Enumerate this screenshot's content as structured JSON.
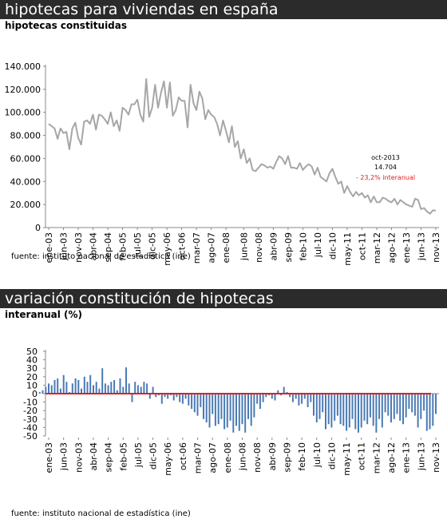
{
  "top": {
    "header": "hipotecas para viviendas en españa",
    "subtitle": "hipotecas constituidas",
    "source": "fuente: instituto nacional de estadística (ine)",
    "annotation": {
      "date": "oct-2013",
      "value": "14.704",
      "change": "- 23,2% interanual"
    }
  },
  "bottom": {
    "header": "variación constitución de hipotecas",
    "subtitle": "interanual (%)",
    "source": "fuente: instituto nacional de estadística (ine)"
  },
  "colors": {
    "line": "#a6a6a6",
    "bar": "#4a7ab5",
    "zero_line": "#e02020",
    "annotation_red": "#e02020",
    "header_bg": "#2b2b2b"
  },
  "chart_data": [
    {
      "type": "line",
      "title": "hipotecas constituidas",
      "x_labels": [
        "ene-03",
        "jun-03",
        "nov-03",
        "abr-04",
        "sep-04",
        "feb-05",
        "jul-05",
        "dic-05",
        "may-06",
        "oct-06",
        "mar-07",
        "ago-07",
        "ene-08",
        "jun-08",
        "nov-08",
        "abr-09",
        "sep-09",
        "feb-10",
        "jul-10",
        "dic-10",
        "may-11",
        "oct-11",
        "mar-12",
        "ago-12",
        "ene-13",
        "jun-13",
        "nov-13"
      ],
      "yticks": [
        "0",
        "20.000",
        "40.000",
        "60.000",
        "80.000",
        "100.000",
        "120.000",
        "140.000"
      ],
      "ylim": [
        0,
        140000
      ],
      "grid": false,
      "series": [
        {
          "values": [
            90000,
            88000,
            86000,
            77000,
            86000,
            82000,
            83000,
            68000,
            86000,
            91000,
            78000,
            72000,
            92000,
            93000,
            90000,
            98000,
            85000,
            98000,
            97000,
            94000,
            90000,
            100000,
            88000,
            93000,
            84000,
            104000,
            102000,
            98000,
            107000,
            107000,
            111000,
            98000,
            92000,
            129000,
            96000,
            104000,
            124000,
            104000,
            117000,
            127000,
            104000,
            126000,
            97000,
            102000,
            113000,
            110000,
            110000,
            87000,
            124000,
            108000,
            102000,
            118000,
            112000,
            94000,
            102000,
            98000,
            96000,
            90000,
            80000,
            93000,
            84000,
            74000,
            88000,
            70000,
            75000,
            60000,
            68000,
            56000,
            60000,
            50000,
            49000,
            52000,
            55000,
            54000,
            52000,
            53000,
            51000,
            57000,
            62000,
            60000,
            55000,
            62000,
            52000,
            52000,
            51000,
            56000,
            50000,
            53000,
            55000,
            53000,
            46000,
            52000,
            44000,
            42000,
            40000,
            47000,
            51000,
            44000,
            38000,
            40000,
            30000,
            36000,
            31000,
            27000,
            31000,
            28000,
            30000,
            26000,
            28000,
            22000,
            27000,
            22000,
            22000,
            26000,
            25000,
            23000,
            22000,
            25000,
            20000,
            24000,
            22000,
            20000,
            19000,
            18000,
            25000,
            24000,
            16000,
            17000,
            14000,
            12000,
            15000,
            14704
          ]
        }
      ]
    },
    {
      "type": "bar",
      "title": "variación constitución de hipotecas",
      "x_labels": [
        "ene-03",
        "jun-03",
        "nov-03",
        "abr-04",
        "sep-04",
        "feb-05",
        "jul-05",
        "dic-05",
        "may-06",
        "oct-06",
        "mar-07",
        "ago-07",
        "ene-08",
        "jun-08",
        "nov-08",
        "abr-09",
        "sep-09",
        "feb-10",
        "jul-10",
        "dic-10",
        "may-11",
        "oct-11",
        "mar-12",
        "ago-12",
        "ene-13",
        "jun-13",
        "nov-13"
      ],
      "yticks": [
        "-50",
        "-40",
        "-30",
        "-20",
        "-10",
        "0",
        "10",
        "20",
        "30",
        "40",
        "50"
      ],
      "ylim": [
        -50,
        50
      ],
      "grid": false,
      "series": [
        {
          "values": [
            2,
            4,
            8,
            12,
            10,
            16,
            18,
            6,
            22,
            14,
            2,
            12,
            18,
            16,
            6,
            20,
            14,
            22,
            10,
            14,
            6,
            30,
            12,
            10,
            14,
            16,
            4,
            18,
            8,
            31,
            12,
            -10,
            14,
            10,
            8,
            14,
            12,
            -6,
            8,
            -4,
            -2,
            -12,
            -4,
            -6,
            -2,
            -8,
            -4,
            -10,
            -12,
            -6,
            -14,
            -18,
            -22,
            -26,
            -16,
            -30,
            -34,
            -40,
            -24,
            -38,
            -36,
            -30,
            -42,
            -40,
            -32,
            -46,
            -38,
            -44,
            -36,
            -46,
            -30,
            -38,
            -28,
            -12,
            -18,
            -10,
            -4,
            -2,
            -6,
            -8,
            4,
            -2,
            8,
            2,
            -4,
            -10,
            -6,
            -14,
            -12,
            -6,
            -16,
            -10,
            -26,
            -34,
            -30,
            -22,
            -42,
            -36,
            -40,
            -32,
            -26,
            -36,
            -38,
            -44,
            -40,
            -30,
            -42,
            -46,
            -40,
            -32,
            -36,
            -28,
            -38,
            -46,
            -30,
            -40,
            -22,
            -26,
            -34,
            -30,
            -24,
            -32,
            -36,
            -28,
            -18,
            -22,
            -26,
            -40,
            -30,
            -20,
            -44,
            -42,
            -38,
            -24
          ]
        }
      ]
    }
  ]
}
